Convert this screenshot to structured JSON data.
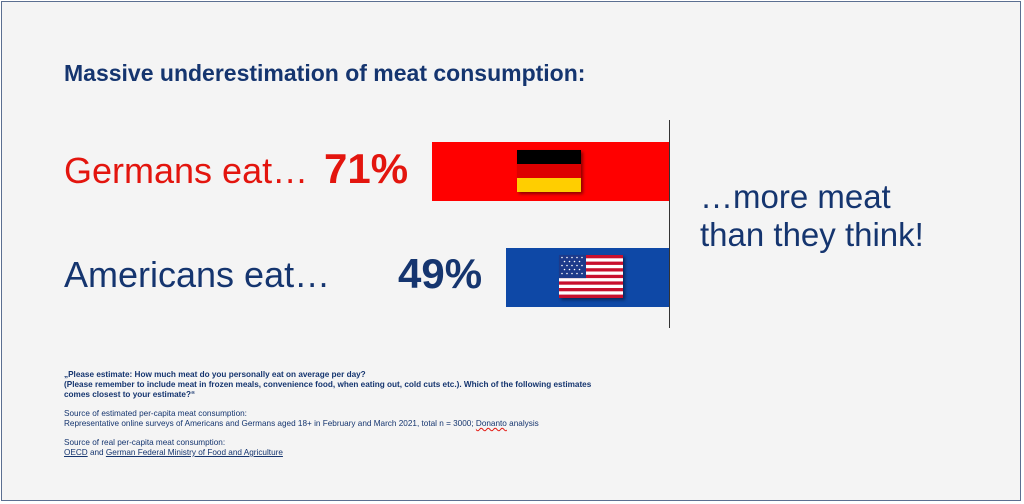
{
  "title": "Massive underestimation of meat consumption:",
  "chart_data": {
    "type": "bar",
    "orientation": "horizontal",
    "categories": [
      "Germans eat…",
      "Americans eat…"
    ],
    "values": [
      71,
      49
    ],
    "value_labels": [
      "71%",
      "49%"
    ],
    "unit": "%",
    "colors": [
      "#ff0000",
      "#0e48a6"
    ],
    "label_colors": [
      "#e3150e",
      "#15356f"
    ],
    "icons": [
      "germany-flag-icon",
      "usa-flag-icon"
    ],
    "annotation": [
      "…more meat",
      "than they think!"
    ]
  },
  "notes": {
    "question_line1": "„Please estimate: How much meat do you personally eat on average per day?",
    "question_line2": "(Please remember to include meat in frozen meals, convenience food, when eating out, cold cuts etc.). Which of the following estimates",
    "question_line3": "comes closest to your estimate?“",
    "estimated_heading": "Source of estimated per-capita meat consumption:",
    "estimated_text": "Representative online surveys of Americans and Germans aged 18+ in February and March 2021, total n = 3000;",
    "estimated_org": "Donanto",
    "estimated_suffix": "analysis",
    "real_heading": "Source of real per-capita meat consumption:",
    "real_source1": "OECD",
    "real_and": "and",
    "real_source2": "German Federal Ministry of Food and Agriculture"
  }
}
